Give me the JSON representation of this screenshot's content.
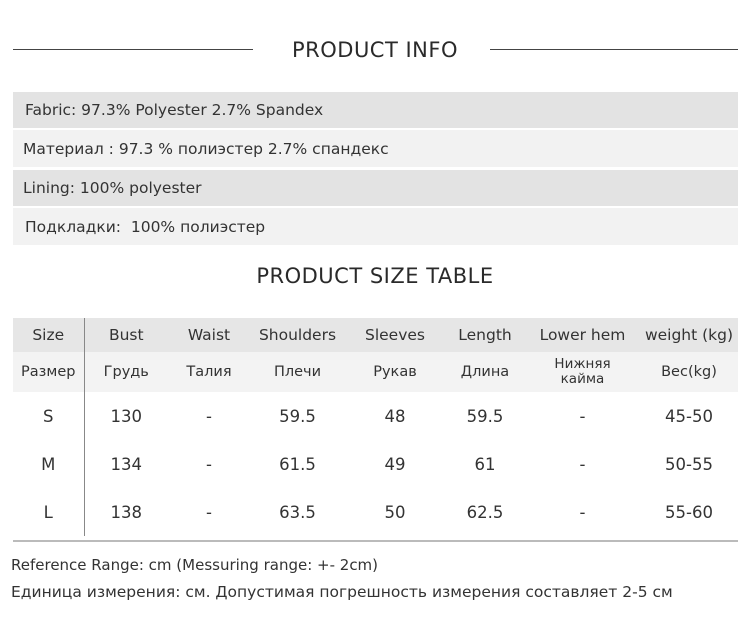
{
  "product_info": {
    "title": "PRODUCT INFO",
    "rows": [
      "Fabric: 97.3% Polyester 2.7% Spandex",
      "Материал : 97.3 % полиэстер 2.7% спандекс",
      "Lining: 100% polyester",
      "Подкладки:  100% полиэстер"
    ]
  },
  "size_table": {
    "title": "PRODUCT SIZE TABLE",
    "headers_en": [
      "Size",
      "Bust",
      "Waist",
      "Shoulders",
      "Sleeves",
      "Length",
      "Lower hem",
      "weight (kg)"
    ],
    "headers_ru": [
      "Размер",
      "Грудь",
      "Талия",
      "Плечи",
      "Рукав",
      "Длина",
      "Нижняя кайма",
      "Вес(kg)"
    ],
    "rows": [
      [
        "S",
        "130",
        "-",
        "59.5",
        "48",
        "59.5",
        "-",
        "45-50"
      ],
      [
        "M",
        "134",
        "-",
        "61.5",
        "49",
        "61",
        "-",
        "50-55"
      ],
      [
        "L",
        "138",
        "-",
        "63.5",
        "50",
        "62.5",
        "-",
        "55-60"
      ]
    ]
  },
  "footer": {
    "line1": "Reference Range: cm (Messuring range: +- 2cm)",
    "line2": "Единица измерения: см. Допустимая погрешность измерения составляет 2-5 см"
  }
}
